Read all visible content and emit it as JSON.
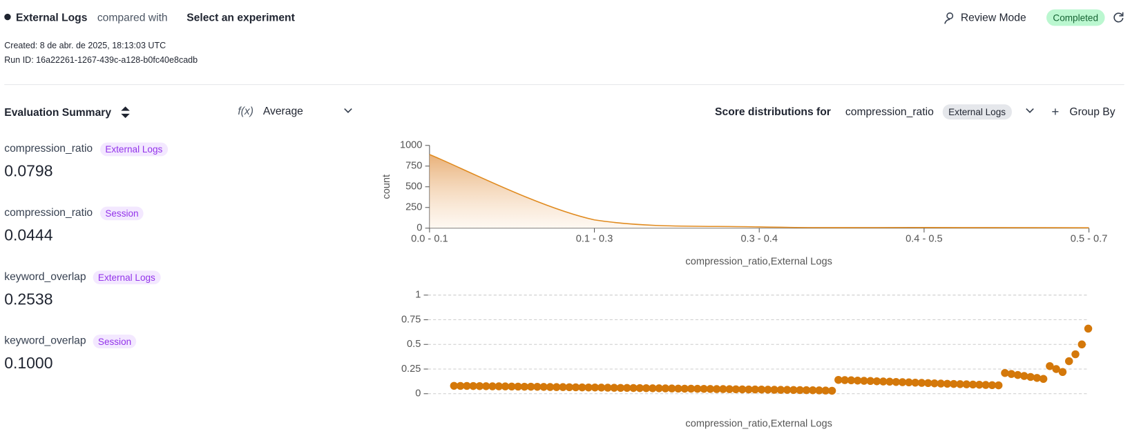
{
  "header": {
    "experiment": "External Logs",
    "compared_with": "compared with",
    "select": "Select an experiment",
    "review_mode": "Review Mode",
    "status": "Completed",
    "created": "Created: 8 de abr. de 2025, 18:13:03 UTC",
    "run_id": "Run ID: 16a22261-1267-439c-a128-b0fc40e8cadb"
  },
  "summary": {
    "title": "Evaluation Summary",
    "aggregate": "Average",
    "metrics": [
      {
        "name": "compression_ratio",
        "tag": "External Logs",
        "value": "0.0798"
      },
      {
        "name": "compression_ratio",
        "tag": "Session",
        "value": "0.0444"
      },
      {
        "name": "keyword_overlap",
        "tag": "External Logs",
        "value": "0.2538"
      },
      {
        "name": "keyword_overlap",
        "tag": "Session",
        "value": "0.1000"
      }
    ]
  },
  "distribution": {
    "label": "Score distributions for",
    "metric": "compression_ratio",
    "tag": "External Logs",
    "group_by": "Group By"
  },
  "chart_data": [
    {
      "type": "area",
      "categories": [
        "0.0 - 0.1",
        "0.1 - 0.3",
        "0.3 - 0.4",
        "0.4 - 0.5",
        "0.5 - 0.7"
      ],
      "values": [
        890,
        100,
        15,
        8,
        5
      ],
      "color": "#e08a1e",
      "ylim": [
        0,
        1000
      ],
      "yticks": [
        0,
        250,
        500,
        750,
        1000
      ],
      "ylabel": "count",
      "xlabel": "compression_ratio,External Logs"
    },
    {
      "type": "scatter",
      "color": "#d4780a",
      "ylim": [
        0,
        1
      ],
      "yticks": [
        0,
        0.25,
        0.5,
        0.75,
        1
      ],
      "grid": true,
      "xlabel": "compression_ratio,External Logs",
      "values": [
        0.08,
        0.079,
        0.079,
        0.078,
        0.077,
        0.076,
        0.075,
        0.075,
        0.074,
        0.073,
        0.072,
        0.071,
        0.071,
        0.07,
        0.069,
        0.068,
        0.067,
        0.067,
        0.066,
        0.065,
        0.064,
        0.063,
        0.063,
        0.062,
        0.061,
        0.06,
        0.059,
        0.059,
        0.058,
        0.057,
        0.056,
        0.055,
        0.055,
        0.054,
        0.053,
        0.052,
        0.051,
        0.051,
        0.05,
        0.049,
        0.048,
        0.047,
        0.047,
        0.046,
        0.045,
        0.044,
        0.043,
        0.043,
        0.042,
        0.041,
        0.04,
        0.039,
        0.039,
        0.038,
        0.037,
        0.036,
        0.035,
        0.034,
        0.032,
        0.03,
        0.14,
        0.138,
        0.136,
        0.133,
        0.131,
        0.129,
        0.126,
        0.124,
        0.122,
        0.119,
        0.117,
        0.115,
        0.112,
        0.11,
        0.108,
        0.105,
        0.103,
        0.101,
        0.099,
        0.097,
        0.095,
        0.093,
        0.091,
        0.089,
        0.087,
        0.085,
        0.21,
        0.2,
        0.19,
        0.18,
        0.17,
        0.16,
        0.15,
        0.28,
        0.25,
        0.22,
        0.33,
        0.4,
        0.5,
        0.66
      ]
    }
  ]
}
